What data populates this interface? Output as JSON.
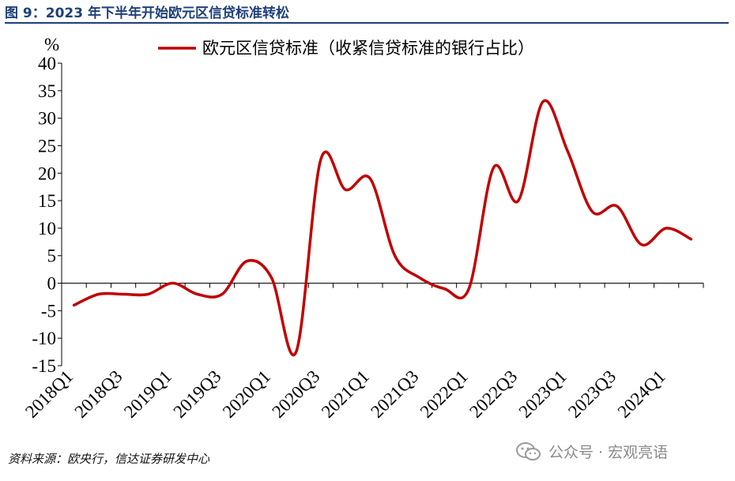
{
  "header": {
    "figure_title": "图 9：2023 年下半年开始欧元区信贷标准转松"
  },
  "footer": {
    "source": "资料来源：欧央行，信达证券研发中心",
    "watermark": "公众号 · 宏观亮语"
  },
  "icons": {
    "watermark_icon": "wechat-icon"
  },
  "colors": {
    "series": "#c00000",
    "title": "#1f3f7a",
    "axis": "#000000"
  },
  "chart_data": {
    "type": "line",
    "ylabel": "%",
    "ylim": [
      -15,
      40
    ],
    "yticks": [
      40,
      35,
      30,
      25,
      20,
      15,
      10,
      5,
      0,
      -5,
      -10,
      -15
    ],
    "grid": false,
    "legend_position": "top",
    "x": [
      "2018Q1",
      "2018Q2",
      "2018Q3",
      "2018Q4",
      "2019Q1",
      "2019Q2",
      "2019Q3",
      "2019Q4",
      "2020Q1",
      "2020Q2",
      "2020Q3",
      "2020Q4",
      "2021Q1",
      "2021Q2",
      "2021Q3",
      "2021Q4",
      "2022Q1",
      "2022Q2",
      "2022Q3",
      "2022Q4",
      "2023Q1",
      "2023Q2",
      "2023Q3",
      "2023Q4",
      "2024Q1",
      "2024Q2"
    ],
    "xtick_labels": [
      "2018Q1",
      "2018Q3",
      "2019Q1",
      "2019Q3",
      "2020Q1",
      "2020Q3",
      "2021Q1",
      "2021Q3",
      "2022Q1",
      "2022Q3",
      "2023Q1",
      "2023Q3",
      "2024Q1"
    ],
    "series": [
      {
        "name": "欧元区信贷标准（收紧信贷标准的银行占比）",
        "values": [
          -4,
          -2,
          -2,
          -2,
          0,
          -2,
          -2,
          4,
          1,
          -12.5,
          22.5,
          17,
          19,
          5,
          1,
          -1,
          -1,
          21,
          15,
          33,
          24,
          13,
          14,
          7,
          10,
          8
        ]
      }
    ]
  }
}
